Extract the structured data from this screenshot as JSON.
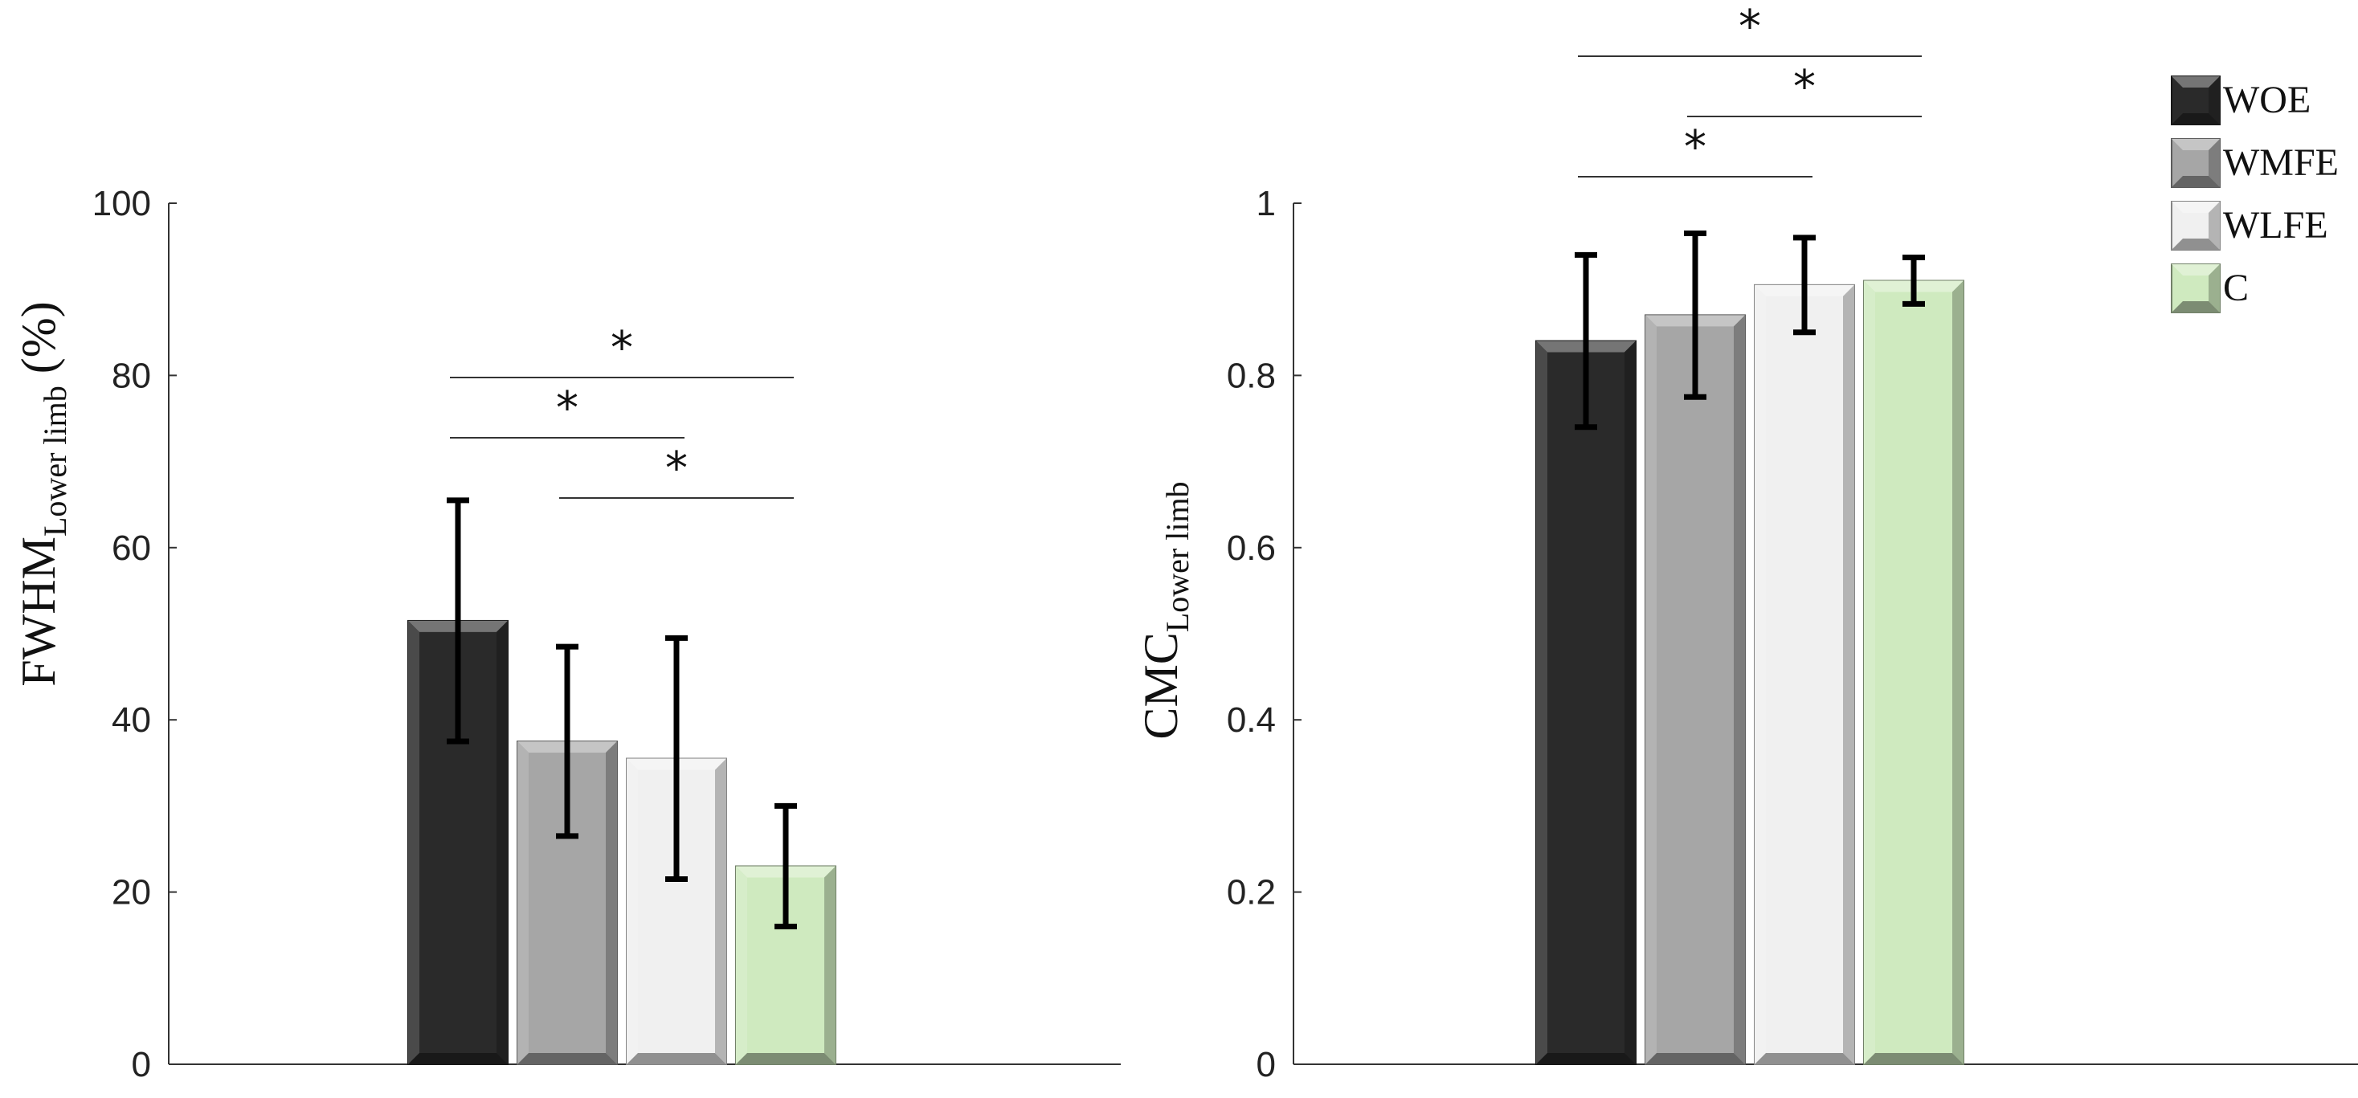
{
  "legend": [
    {
      "label": "WOE",
      "color": "#2a2a2a"
    },
    {
      "label": "WMFE",
      "color": "#a6a6a6"
    },
    {
      "label": "WLFE",
      "color": "#f0f0f0"
    },
    {
      "label": "C",
      "color": "#cfeabf"
    }
  ],
  "chart_data": [
    {
      "type": "bar",
      "ylabel_main": "FWHM",
      "ylabel_sub": "Lower limb",
      "ylabel_tail": " (%)",
      "ylim": [
        0,
        100
      ],
      "yticks": [
        "0",
        "20",
        "40",
        "60",
        "80",
        "100"
      ],
      "categories": [
        "WOE",
        "WMFE",
        "WLFE",
        "C"
      ],
      "values": [
        51.5,
        37.5,
        35.5,
        23
      ],
      "errors": [
        14,
        11,
        14,
        7
      ],
      "significance": [
        {
          "from": 0,
          "to": 3,
          "label": "*"
        },
        {
          "from": 0,
          "to": 2,
          "label": "*"
        },
        {
          "from": 1,
          "to": 3,
          "label": "*"
        }
      ]
    },
    {
      "type": "bar",
      "ylabel_main": "CMC",
      "ylabel_sub": "Lower limb",
      "ylabel_tail": "",
      "ylim": [
        0,
        1
      ],
      "yticks": [
        "0",
        "0.2",
        "0.4",
        "0.6",
        "0.8",
        "1"
      ],
      "categories": [
        "WOE",
        "WMFE",
        "WLFE",
        "C"
      ],
      "values": [
        0.84,
        0.87,
        0.905,
        0.91
      ],
      "errors": [
        0.1,
        0.095,
        0.055,
        0.027
      ],
      "significance": [
        {
          "from": 0,
          "to": 3,
          "label": "*"
        },
        {
          "from": 1,
          "to": 3,
          "label": "*"
        },
        {
          "from": 0,
          "to": 2,
          "label": "*"
        }
      ]
    }
  ]
}
